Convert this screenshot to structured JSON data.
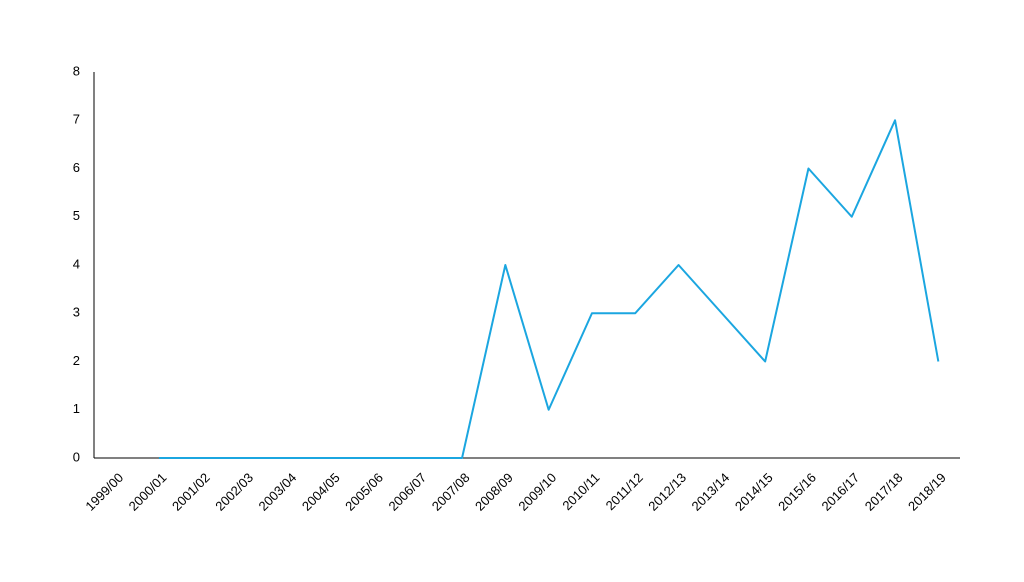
{
  "chart_data": {
    "type": "line",
    "categories": [
      "1999/00",
      "2000/01",
      "2001/02",
      "2002/03",
      "2003/04",
      "2004/05",
      "2005/06",
      "2006/07",
      "2007/08",
      "2008/09",
      "2009/10",
      "2010/11",
      "2011/12",
      "2012/13",
      "2013/14",
      "2014/15",
      "2015/16",
      "2016/17",
      "2017/18",
      "2018/19"
    ],
    "values": [
      null,
      0,
      0,
      0,
      0,
      0,
      0,
      0,
      0,
      4,
      1,
      3,
      3,
      4,
      3,
      2,
      6,
      5,
      7,
      2
    ],
    "color": "#1ba6e0",
    "ylim": [
      0,
      8
    ],
    "yticks": [
      0,
      1,
      2,
      3,
      4,
      5,
      6,
      7,
      8
    ],
    "grid": false
  }
}
